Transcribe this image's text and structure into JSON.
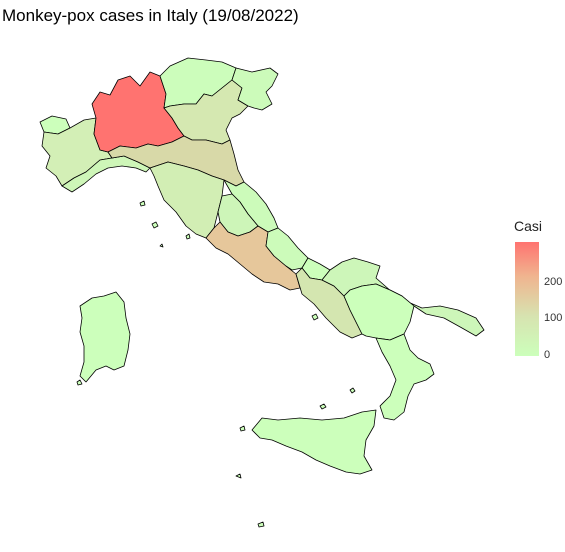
{
  "map": {
    "title": "Monkey-pox cases in Italy (19/08/2022)",
    "legend": {
      "title": "Casi",
      "ticks": [
        "200",
        "100",
        "0"
      ],
      "min": 0,
      "max": 295,
      "low_color": "#ccffbb",
      "mid_color": "#d7e3b0",
      "high_color": "#ff7370"
    },
    "regions": [
      {
        "name": "Lombardia",
        "fill": "#ff7370"
      },
      {
        "name": "Lazio",
        "fill": "#e6c79b"
      },
      {
        "name": "Emilia-Romagna",
        "fill": "#d8d9a8"
      },
      {
        "name": "Veneto",
        "fill": "#d5e8b1"
      },
      {
        "name": "Piemonte",
        "fill": "#d3efb6"
      },
      {
        "name": "Toscana",
        "fill": "#d2eeb4"
      },
      {
        "name": "Campania",
        "fill": "#d4e6b0"
      },
      {
        "name": "Puglia",
        "fill": "#cdf6b9"
      },
      {
        "name": "Sicilia",
        "fill": "#ccffbb"
      },
      {
        "name": "Sardegna",
        "fill": "#ccffbb"
      },
      {
        "name": "Liguria",
        "fill": "#cef6b8"
      },
      {
        "name": "Marche",
        "fill": "#ccfbba"
      },
      {
        "name": "Umbria",
        "fill": "#cdf5b8"
      },
      {
        "name": "Abruzzo",
        "fill": "#ccfbba"
      },
      {
        "name": "Friuli-Venezia Giulia",
        "fill": "#ccfbba"
      },
      {
        "name": "Trentino-Alto Adige",
        "fill": "#ccfdbb"
      },
      {
        "name": "Valle d'Aosta",
        "fill": "#ccffbb"
      },
      {
        "name": "Molise",
        "fill": "#ccffbb"
      },
      {
        "name": "Basilicata",
        "fill": "#ccffbb"
      },
      {
        "name": "Calabria",
        "fill": "#ccffbb"
      }
    ]
  }
}
